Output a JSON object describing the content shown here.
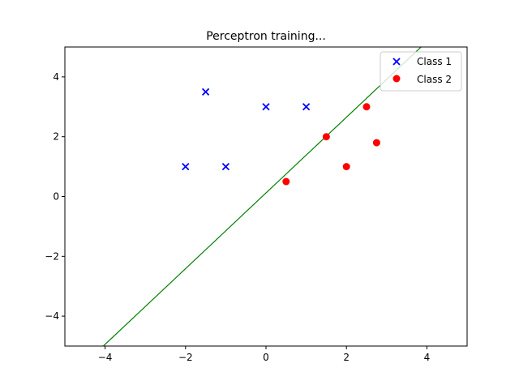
{
  "chart_data": {
    "type": "scatter",
    "title": "Perceptron training...",
    "xlabel": "",
    "ylabel": "",
    "xlim": [
      -5,
      5
    ],
    "ylim": [
      -5,
      5
    ],
    "xticks": [
      -4,
      -2,
      0,
      2,
      4
    ],
    "yticks": [
      -4,
      -2,
      0,
      2,
      4
    ],
    "xtick_labels": [
      "−4",
      "−2",
      "0",
      "2",
      "4"
    ],
    "ytick_labels": [
      "−4",
      "−2",
      "0",
      "2",
      "4"
    ],
    "grid": false,
    "legend_position": "top-right",
    "series": [
      {
        "name": "Class 1",
        "marker": "x",
        "color": "#0000ff",
        "points": [
          [
            -2,
            1
          ],
          [
            -1.5,
            3.5
          ],
          [
            -1,
            1
          ],
          [
            0,
            3
          ],
          [
            1,
            3
          ]
        ]
      },
      {
        "name": "Class 2",
        "marker": "o",
        "color": "#ff0000",
        "points": [
          [
            0.5,
            0.5
          ],
          [
            1.5,
            2
          ],
          [
            2,
            1
          ],
          [
            2.5,
            3
          ],
          [
            2.75,
            1.8
          ]
        ]
      }
    ],
    "decision_boundary": {
      "color": "#008000",
      "slope": 1.266,
      "intercept": 0.12
    }
  }
}
